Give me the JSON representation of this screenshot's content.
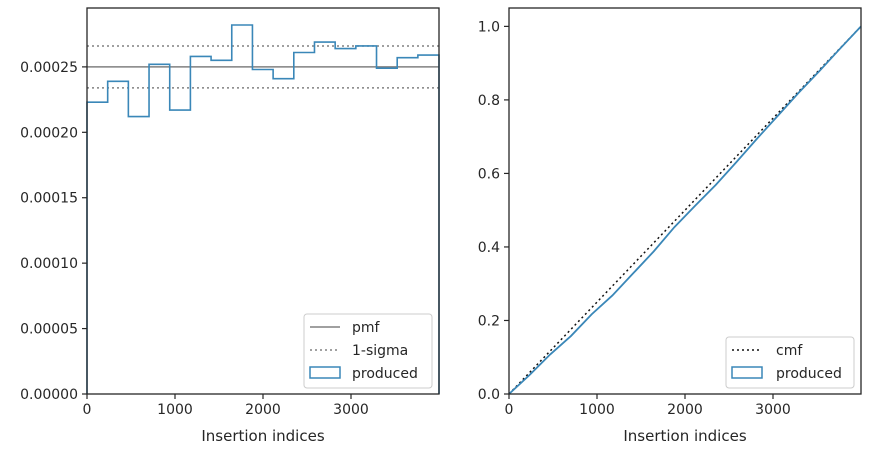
{
  "chart_data": [
    {
      "type": "step-histogram",
      "xlabel": "Insertion indices",
      "ylabel": "",
      "xlim": [
        0,
        4000
      ],
      "ylim": [
        0,
        0.000295
      ],
      "x_ticks": [
        0,
        1000,
        2000,
        3000
      ],
      "x_tick_labels": [
        "0",
        "1000",
        "2000",
        "3000"
      ],
      "y_ticks": [
        0,
        5e-05,
        0.0001,
        0.00015,
        0.0002,
        0.00025
      ],
      "y_tick_labels": [
        "0.00000",
        "0.00005",
        "0.00010",
        "0.00015",
        "0.00020",
        "0.00025"
      ],
      "grid": false,
      "legend_position": "lower-right",
      "bin_edges": [
        0,
        235,
        470,
        705,
        940,
        1175,
        1410,
        1645,
        1880,
        2115,
        2350,
        2585,
        2820,
        3055,
        3290,
        3525,
        3760,
        4000
      ],
      "series": [
        {
          "name": "produced",
          "style": "step",
          "color": "#3a87b8",
          "values": [
            0.000223,
            0.000239,
            0.000212,
            0.000252,
            0.000217,
            0.000258,
            0.000255,
            0.000282,
            0.000248,
            0.000241,
            0.000261,
            0.000269,
            0.000264,
            0.000266,
            0.000249,
            0.000257,
            0.000259
          ]
        }
      ],
      "reference_lines": [
        {
          "name": "pmf",
          "y": 0.00025,
          "style": "solid",
          "color": "#808080"
        },
        {
          "name": "1-sigma",
          "y": 0.000266,
          "style": "dotted",
          "color": "#808080"
        },
        {
          "name": "1-sigma",
          "y": 0.000234,
          "style": "dotted",
          "color": "#808080"
        }
      ],
      "legend": [
        {
          "label": "pmf",
          "style": "solid"
        },
        {
          "label": "1-sigma",
          "style": "dotted"
        },
        {
          "label": "produced",
          "style": "patch"
        }
      ]
    },
    {
      "type": "line",
      "xlabel": "Insertion indices",
      "ylabel": "",
      "xlim": [
        0,
        4000
      ],
      "ylim": [
        0,
        1.05
      ],
      "x_ticks": [
        0,
        1000,
        2000,
        3000
      ],
      "x_tick_labels": [
        "0",
        "1000",
        "2000",
        "3000"
      ],
      "y_ticks": [
        0,
        0.2,
        0.4,
        0.6,
        0.8,
        1.0
      ],
      "y_tick_labels": [
        "0.0",
        "0.2",
        "0.4",
        "0.6",
        "0.8",
        "1.0"
      ],
      "grid": false,
      "legend_position": "lower-right",
      "series": [
        {
          "name": "cmf",
          "style": "dotted",
          "color": "#111111",
          "x": [
            0,
            4000
          ],
          "y": [
            0,
            1
          ]
        },
        {
          "name": "produced",
          "style": "step",
          "color": "#3a87b8",
          "x": [
            0,
            235,
            470,
            705,
            940,
            1175,
            1410,
            1645,
            1880,
            2115,
            2350,
            2585,
            2820,
            3055,
            3290,
            3525,
            3760,
            4000
          ],
          "y": [
            0,
            0.052,
            0.108,
            0.158,
            0.217,
            0.268,
            0.328,
            0.388,
            0.454,
            0.512,
            0.569,
            0.631,
            0.695,
            0.757,
            0.819,
            0.878,
            0.939,
            1.0
          ]
        }
      ],
      "legend": [
        {
          "label": "cmf",
          "style": "dotted"
        },
        {
          "label": "produced",
          "style": "patch"
        }
      ]
    }
  ]
}
